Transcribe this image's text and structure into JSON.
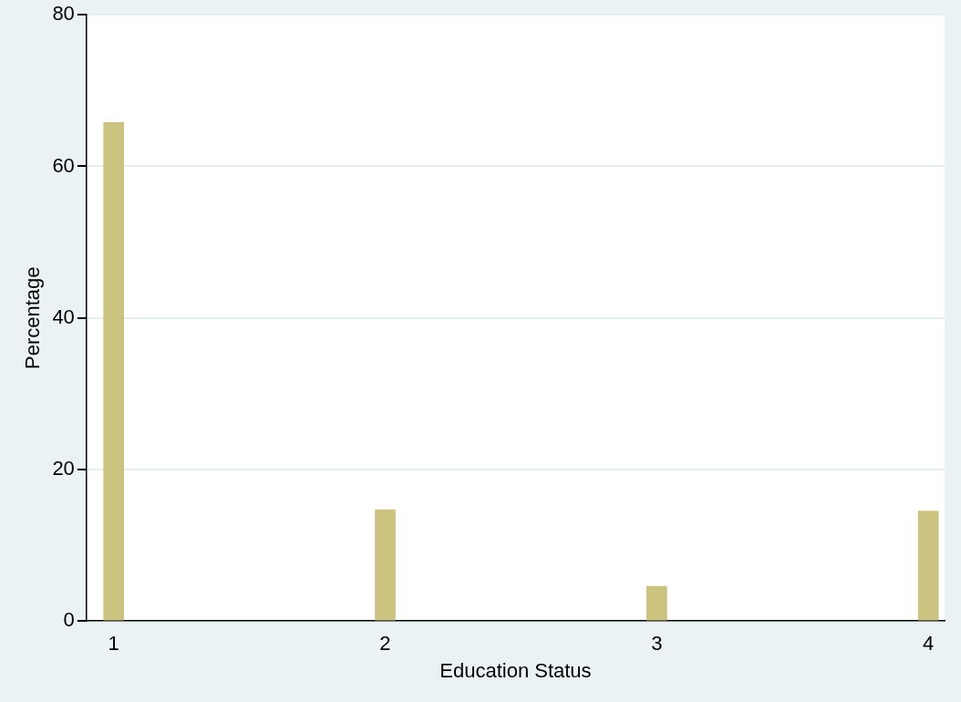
{
  "chart_data": {
    "type": "bar",
    "xlabel": "Education Status",
    "ylabel": "Percentage",
    "x": [
      1,
      2,
      3,
      4
    ],
    "values": [
      65.8,
      14.7,
      4.6,
      14.5
    ],
    "color": "#cdc380",
    "xlim": [
      0.9,
      4.06
    ],
    "xticks": [
      1,
      2,
      3,
      4
    ],
    "ylim": [
      0,
      80
    ],
    "yticks": [
      0,
      20,
      40,
      60,
      80
    ],
    "grid": "y",
    "legend": false
  }
}
